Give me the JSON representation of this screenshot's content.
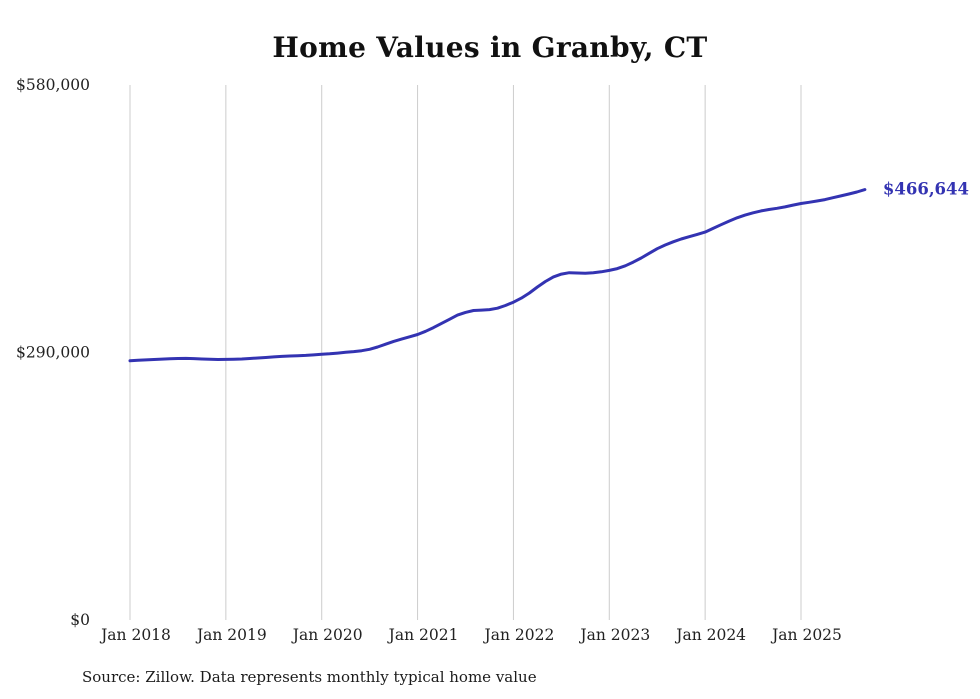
{
  "chart": {
    "title": "Home Values in Granby, CT",
    "source_note": "Source: Zillow. Data represents monthly typical home value",
    "end_label": "$466,644",
    "line_color": "#3333b2",
    "grid_color": "#cccccc",
    "axis_label_color": "#222222"
  },
  "chart_data": {
    "type": "line",
    "title": "Home Values in Granby, CT",
    "ylabel": "",
    "xlabel": "",
    "ylim": [
      0,
      580000
    ],
    "y_ticks": [
      0,
      290000,
      580000
    ],
    "y_tick_labels": [
      "$0",
      "$290,000",
      "$580,000"
    ],
    "x_tick_labels": [
      "Jan 2018",
      "Jan 2019",
      "Jan 2020",
      "Jan 2021",
      "Jan 2022",
      "Jan 2023",
      "Jan 2024",
      "Jan 2025"
    ],
    "grid": "vertical-only",
    "legend": "none",
    "annotation": {
      "text": "$466,644",
      "position": "line-end"
    },
    "x": [
      "2018-01",
      "2018-02",
      "2018-03",
      "2018-04",
      "2018-05",
      "2018-06",
      "2018-07",
      "2018-08",
      "2018-09",
      "2018-10",
      "2018-11",
      "2018-12",
      "2019-01",
      "2019-02",
      "2019-03",
      "2019-04",
      "2019-05",
      "2019-06",
      "2019-07",
      "2019-08",
      "2019-09",
      "2019-10",
      "2019-11",
      "2019-12",
      "2020-01",
      "2020-02",
      "2020-03",
      "2020-04",
      "2020-05",
      "2020-06",
      "2020-07",
      "2020-08",
      "2020-09",
      "2020-10",
      "2020-11",
      "2020-12",
      "2021-01",
      "2021-02",
      "2021-03",
      "2021-04",
      "2021-05",
      "2021-06",
      "2021-07",
      "2021-08",
      "2021-09",
      "2021-10",
      "2021-11",
      "2021-12",
      "2022-01",
      "2022-02",
      "2022-03",
      "2022-04",
      "2022-05",
      "2022-06",
      "2022-07",
      "2022-08",
      "2022-09",
      "2022-10",
      "2022-11",
      "2022-12",
      "2023-01",
      "2023-02",
      "2023-03",
      "2023-04",
      "2023-05",
      "2023-06",
      "2023-07",
      "2023-08",
      "2023-09",
      "2023-10",
      "2023-11",
      "2023-12",
      "2024-01",
      "2024-02",
      "2024-03",
      "2024-04",
      "2024-05",
      "2024-06",
      "2024-07",
      "2024-08",
      "2024-09",
      "2024-10",
      "2024-11",
      "2024-12",
      "2025-01",
      "2025-02",
      "2025-03",
      "2025-04",
      "2025-05",
      "2025-06",
      "2025-07",
      "2025-08",
      "2025-09"
    ],
    "values": [
      281000,
      281500,
      282000,
      282400,
      282800,
      283200,
      283500,
      283600,
      283400,
      283000,
      282600,
      282400,
      282500,
      282700,
      283000,
      283500,
      284000,
      284600,
      285200,
      285800,
      286200,
      286500,
      286900,
      287400,
      288000,
      288600,
      289400,
      290200,
      291000,
      292000,
      293500,
      296000,
      299000,
      302000,
      304500,
      307000,
      309500,
      313000,
      317000,
      321500,
      326000,
      330500,
      333500,
      335500,
      336000,
      336500,
      338000,
      341000,
      344500,
      349000,
      354500,
      361000,
      367000,
      372000,
      375000,
      376500,
      376200,
      376000,
      376500,
      377500,
      379000,
      381000,
      384000,
      388000,
      392500,
      397500,
      402500,
      406500,
      410000,
      413000,
      415500,
      418000,
      420500,
      424500,
      428500,
      432500,
      436000,
      439000,
      441500,
      443500,
      445000,
      446300,
      447800,
      449800,
      451500,
      452800,
      454200,
      455800,
      457800,
      459800,
      461800,
      464000,
      466644
    ]
  }
}
